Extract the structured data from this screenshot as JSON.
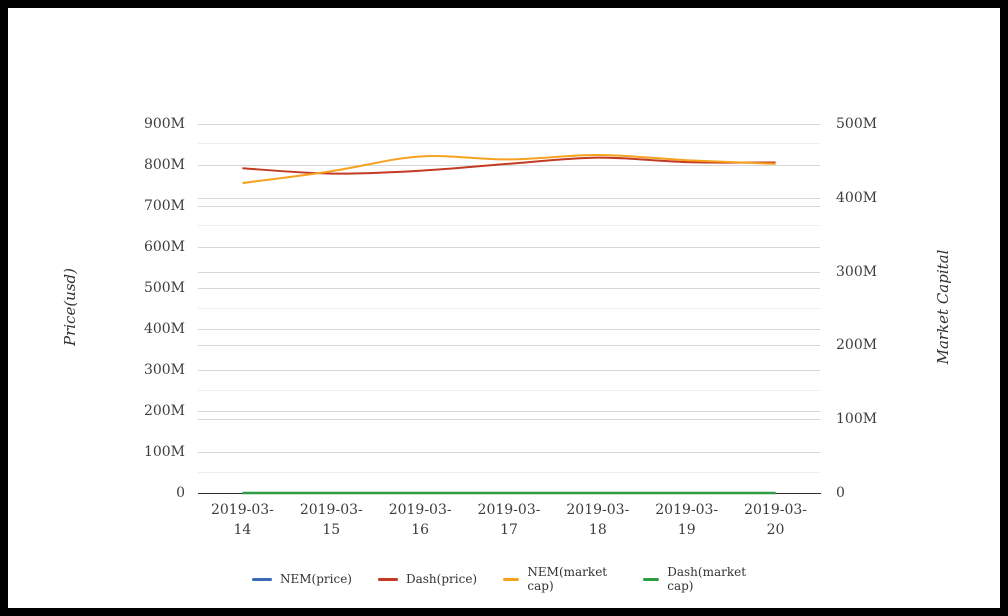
{
  "chart_data": {
    "type": "line",
    "smooth": true,
    "grid": true,
    "legend_position": "bottom",
    "categories": [
      "2019-03-14",
      "2019-03-15",
      "2019-03-16",
      "2019-03-17",
      "2019-03-18",
      "2019-03-19",
      "2019-03-20"
    ],
    "category_label_lines": [
      [
        "2019-03-",
        "14"
      ],
      [
        "2019-03-",
        "15"
      ],
      [
        "2019-03-",
        "16"
      ],
      [
        "2019-03-",
        "17"
      ],
      [
        "2019-03-",
        "18"
      ],
      [
        "2019-03-",
        "19"
      ],
      [
        "2019-03-",
        "20"
      ]
    ],
    "left_axis": {
      "title": "Price(usd)",
      "min": 0,
      "max": 900,
      "tick_step": 100,
      "unit": "M",
      "tick_labels": [
        "0",
        "100M",
        "200M",
        "300M",
        "400M",
        "500M",
        "600M",
        "700M",
        "800M",
        "900M"
      ]
    },
    "right_axis": {
      "title": "Market Capital",
      "min": 0,
      "max": 500,
      "tick_step": 100,
      "unit": "M",
      "tick_labels": [
        "0",
        "100M",
        "200M",
        "300M",
        "400M",
        "500M"
      ]
    },
    "series": [
      {
        "id": "nem-price",
        "name": "NEM(price)",
        "axis": "left",
        "color": "#3a6cb4",
        "unit": "M",
        "values": [
          0,
          0,
          0,
          0,
          0,
          0,
          0
        ]
      },
      {
        "id": "dash-price",
        "name": "Dash(price)",
        "axis": "left",
        "color": "#c23b22",
        "unit": "M",
        "values": [
          792,
          779,
          786,
          803,
          818,
          807,
          806
        ]
      },
      {
        "id": "nem-market-cap",
        "name": "NEM(market cap)",
        "axis": "right",
        "color": "#f6a220",
        "unit": "M",
        "values": [
          420,
          436,
          456,
          452,
          458,
          451,
          446
        ]
      },
      {
        "id": "dash-market-cap",
        "name": "Dash(market cap)",
        "axis": "right",
        "color": "#2f9d44",
        "unit": "M",
        "values": [
          0,
          0,
          0,
          0,
          0,
          0,
          0
        ]
      }
    ],
    "colors": {
      "gridline": "#d7d7d7",
      "minor_gridline": "#eeeeee",
      "axis_line": "#2f2f2f",
      "tick_text": "#3d3d3d",
      "axis_title_text": "#333333",
      "legend_text": "#333333",
      "frame": "#000000",
      "background": "#ffffff"
    }
  }
}
